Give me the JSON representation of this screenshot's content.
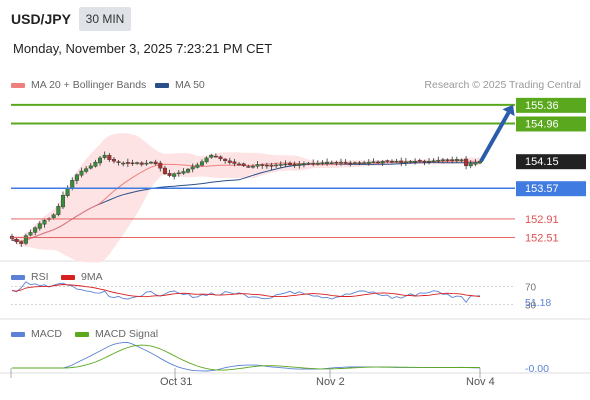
{
  "header": {
    "symbol": "USD/JPY",
    "timeframe": "30 MIN",
    "datetime": "Monday, November 3, 2025 7:23:21 PM CET"
  },
  "legend": {
    "ma20_label": "MA 20 + Bollinger Bands",
    "ma50_label": "MA 50",
    "source": "Research © 2025 Trading Central"
  },
  "colors": {
    "ma20": "#f08080",
    "ma50": "#2a4f8a",
    "band_fill": "#fde3e3",
    "target": "#5aa81e",
    "pivot": "#3f7be0",
    "support": "#e05050",
    "arrow": "#2a5caa",
    "rsi": "#5b82d6",
    "rsi_ma": "#d92020",
    "macd": "#5b82d6",
    "macd_signal": "#5aa81e"
  },
  "chart_data": [
    {
      "type": "candlestick",
      "title": "USD/JPY",
      "x_labels": [
        "Oct 31",
        "Nov 2",
        "Nov 4"
      ],
      "ylim": [
        152.2,
        155.55
      ],
      "levels": [
        {
          "value": 155.36,
          "label": "155.36",
          "kind": "target"
        },
        {
          "value": 154.96,
          "label": "154.96",
          "kind": "target"
        },
        {
          "value": 154.15,
          "label": "154.15",
          "kind": "last"
        },
        {
          "value": 153.57,
          "label": "153.57",
          "kind": "pivot"
        },
        {
          "value": 152.91,
          "label": "152.91",
          "kind": "support"
        },
        {
          "value": 152.51,
          "label": "152.51",
          "kind": "support"
        }
      ],
      "close_series": [
        152.49,
        152.42,
        152.38,
        152.55,
        152.62,
        152.72,
        152.81,
        152.88,
        152.92,
        153.0,
        153.18,
        153.42,
        153.58,
        153.74,
        153.86,
        153.94,
        153.99,
        154.05,
        154.13,
        154.22,
        154.28,
        154.18,
        154.15,
        154.12,
        154.11,
        154.1,
        154.11,
        154.12,
        154.08,
        154.11,
        154.13,
        154.09,
        154.0,
        153.88,
        153.84,
        153.88,
        153.9,
        153.93,
        153.98,
        154.03,
        154.07,
        154.14,
        154.22,
        154.28,
        154.25,
        154.2,
        154.16,
        154.12,
        154.1,
        154.08,
        154.05,
        154.03,
        154.04,
        154.08,
        154.06,
        154.06,
        154.04,
        154.07,
        154.08,
        154.09,
        154.07,
        154.06,
        154.09,
        154.1,
        154.11,
        154.1,
        154.11,
        154.12,
        154.13,
        154.12,
        154.12,
        154.13,
        154.12,
        154.11,
        154.12,
        154.11,
        154.12,
        154.13,
        154.14,
        154.13,
        154.15,
        154.16,
        154.14,
        154.15,
        154.12,
        154.14,
        154.15,
        154.15,
        154.16,
        154.14,
        154.15,
        154.16,
        154.17,
        154.18,
        154.17,
        154.16,
        154.19,
        154.18,
        154.05,
        154.1,
        154.12,
        154.15
      ],
      "forecast_arrow": {
        "from": 154.15,
        "to": 155.36
      }
    },
    {
      "type": "line",
      "title": "RSI",
      "series": [
        {
          "name": "RSI"
        },
        {
          "name": "9MA"
        }
      ],
      "levels": [
        70,
        30
      ],
      "last_value": "51.18",
      "level_labels": [
        "70",
        "30"
      ]
    },
    {
      "type": "line",
      "title": "MACD",
      "series": [
        {
          "name": "MACD"
        },
        {
          "name": "MACD Signal"
        }
      ],
      "last_value": "-0.00"
    }
  ]
}
